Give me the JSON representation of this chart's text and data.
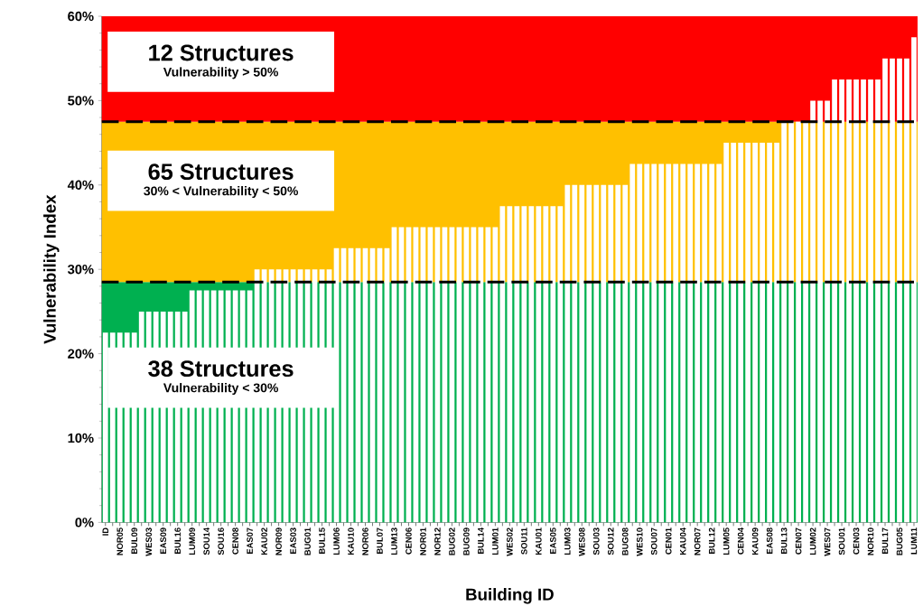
{
  "chart_data": {
    "type": "bar",
    "xlabel": "Building ID",
    "ylabel": "Vulnerability Index",
    "categories": [
      "ID",
      null,
      "NOR05",
      null,
      "BUL09",
      null,
      "WES03",
      null,
      "EAS09",
      null,
      "BUL16",
      null,
      "LUM09",
      null,
      "SOU14",
      null,
      "SOU16",
      null,
      "CEN08",
      null,
      "EAS07",
      null,
      "KAU02",
      null,
      "NOR09",
      null,
      "EAS03",
      null,
      "BUG01",
      null,
      "BUL15",
      null,
      "LUM06",
      null,
      "KAU10",
      null,
      "NOR06",
      null,
      "BUL07",
      null,
      "LUM13",
      null,
      "CEN06",
      null,
      "NOR01",
      null,
      "NOR12",
      null,
      "BUG02",
      null,
      "BUG09",
      null,
      "BUL14",
      null,
      "LUM01",
      null,
      "WES02",
      null,
      "SOU11",
      null,
      "KAU01",
      null,
      "EAS05",
      null,
      "LUM03",
      null,
      "WES08",
      null,
      "SOU03",
      null,
      "SOU12",
      null,
      "BUG08",
      null,
      "WES10",
      null,
      "SOU07",
      null,
      "CEN01",
      null,
      "KAU04",
      null,
      "NOR07",
      null,
      "BUL12",
      null,
      "LUM05",
      null,
      "CEN04",
      null,
      "KAU09",
      null,
      "EAS08",
      null,
      "BUL13",
      null,
      "CEN07",
      null,
      "LUM02",
      null,
      "WES07",
      null,
      "SOU01",
      null,
      "CEN03",
      null,
      "NOR10",
      null,
      "BUL17",
      null,
      "BUG05",
      null,
      "LUM11"
    ],
    "series": [
      {
        "color": "#ffffff",
        "values": [
          22.5,
          22.5,
          22.5,
          22.5,
          22.5,
          25,
          25,
          25,
          25,
          25,
          25,
          25,
          27.5,
          27.5,
          27.5,
          27.5,
          27.5,
          27.5,
          27.5,
          27.5,
          27.5,
          30,
          30,
          30,
          30,
          30,
          30,
          30,
          30,
          30,
          30,
          30,
          32.5,
          32.5,
          32.5,
          32.5,
          32.5,
          32.5,
          32.5,
          32.5,
          35,
          35,
          35,
          35,
          35,
          35,
          35,
          35,
          35,
          35,
          35,
          35,
          35,
          35,
          35,
          37.5,
          37.5,
          37.5,
          37.5,
          37.5,
          37.5,
          37.5,
          37.5,
          37.5,
          40,
          40,
          40,
          40,
          40,
          40,
          40,
          40,
          40,
          42.5,
          42.5,
          42.5,
          42.5,
          42.5,
          42.5,
          42.5,
          42.5,
          42.5,
          42.5,
          42.5,
          42.5,
          42.5,
          45,
          45,
          45,
          45,
          45,
          45,
          45,
          45,
          47.5,
          47.5,
          47.5,
          47.5,
          50,
          50,
          50,
          52.5,
          52.5,
          52.5,
          52.5,
          52.5,
          52.5,
          52.5,
          55,
          55,
          55,
          55,
          57.5
        ]
      }
    ],
    "ylim": [
      0,
      60
    ],
    "yticks": [
      {
        "value": 0,
        "label": "0%"
      },
      {
        "value": 10,
        "label": "10%"
      },
      {
        "value": 20,
        "label": "20%"
      },
      {
        "value": 30,
        "label": "30%"
      },
      {
        "value": 40,
        "label": "40%"
      },
      {
        "value": 50,
        "label": "50%"
      },
      {
        "value": 60,
        "label": "60%"
      }
    ],
    "bands": [
      {
        "axis": "y",
        "from": 0,
        "to": 28.5,
        "color": "#00b050"
      },
      {
        "axis": "y",
        "from": 28.5,
        "to": 47.5,
        "color": "#ffc000"
      },
      {
        "axis": "y",
        "from": 47.5,
        "to": 60,
        "color": "#ff0000"
      }
    ],
    "ref_lines": [
      {
        "axis": "y",
        "value": 28.5,
        "color": "#000000",
        "line_style": "dashed"
      },
      {
        "axis": "y",
        "value": 47.5,
        "color": "#000000",
        "line_style": "dashed"
      }
    ],
    "annotations": [
      "12 Structures",
      "Vulnerability  > 50%",
      "65 Structures",
      "30% < Vulnerability  < 50%",
      "38 Structures",
      "Vulnerability < 30%"
    ]
  }
}
